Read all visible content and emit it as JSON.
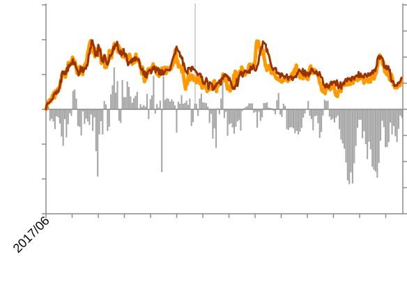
{
  "chart_data": {
    "type": "line",
    "title": "",
    "xlabel": "",
    "ylabel": "",
    "x_tick_labels": [
      "2017/06"
    ],
    "x_tick_count": 14,
    "y_left_tick_count": 7,
    "y_right_tick_count": 9,
    "y_left_range": [
      -3,
      3
    ],
    "y_right_range": [
      -4,
      4
    ],
    "grid": false,
    "legend": "none",
    "series": [
      {
        "type": "bar",
        "axis": "left",
        "color": "#a6a6a6",
        "values": [
          0.03,
          0.08,
          -0.33,
          -0.27,
          -0.35,
          -0.57,
          -0.2,
          -0.23,
          -0.41,
          -0.78,
          -1.05,
          -0.28,
          -0.81,
          -0.43,
          -0.11,
          -0.19,
          0.53,
          0.57,
          0.31,
          -0.48,
          -0.5,
          -0.75,
          -0.06,
          -0.42,
          -0.27,
          -0.35,
          -0.45,
          -0.15,
          -0.62,
          -0.23,
          -1.2,
          -1.93,
          -0.72,
          -0.34,
          -0.72,
          0.24,
          0.14,
          -0.62,
          -0.5,
          0.43,
          0.69,
          1.2,
          0.48,
          0.81,
          -0.33,
          -0.39,
          0.84,
          0.35,
          0.35,
          0.8,
          0.64,
          0.37,
          0.19,
          0.32,
          0.39,
          0.5,
          0.03,
          0.15,
          0.07,
          0.12,
          0.08,
          0.44,
          -0.28,
          0.29,
          0.4,
          0.96,
          -0.12,
          0.15,
          0.05,
          0.25,
          -1.8,
          0.95,
          0.27,
          0.32,
          0.3,
          0.22,
          0.29,
          0.23,
          0.11,
          -0.67,
          0.22,
          0.16,
          0.41,
          0.16,
          0.18,
          0.25,
          0.13,
          0.31,
          -0.48,
          -0.37,
          0.16,
          0.16,
          -0.19,
          0.31,
          0.45,
          0.2,
          0.19,
          0.18,
          0.08,
          -0.39,
          -0.13,
          -0.84,
          -0.55,
          -1.11,
          0.03,
          -0.14,
          0.31,
          0.8,
          -0.25,
          -0.07,
          -0.76,
          -0.43,
          -0.4,
          -0.52,
          -0.7,
          -0.5,
          -0.35,
          -0.31,
          -0.61,
          -0.05,
          0.03,
          0.07,
          0.09,
          0.17,
          0.17,
          0.17,
          -0.1,
          -0.07,
          -0.53,
          -0.07,
          -0.33,
          -0.23,
          0.18,
          0.18,
          0.2,
          0.05,
          0.04,
          0.03,
          -0.04,
          -0.14,
          0.26,
          0.47,
          -0.15,
          -0.22,
          0.16,
          0.1,
          -0.57,
          -0.59,
          -0.52,
          -0.51,
          -0.55,
          -0.69,
          -0.62,
          -0.72,
          -0.64,
          -0.53,
          -0.24,
          -0.12,
          -0.01,
          0.24,
          -0.19,
          -0.28,
          -0.6,
          -0.2,
          -0.18,
          -0.4,
          -0.82,
          -0.65,
          -0.18,
          0.27,
          0.24,
          0.25,
          -0.21,
          -0.3,
          -0.27,
          -0.38,
          -0.24,
          -0.18,
          -0.57,
          -0.87,
          -0.98,
          -1.13,
          -1.53,
          -2.04,
          -2.15,
          -1.81,
          -2.13,
          -1.55,
          -1.05,
          -0.53,
          -0.3,
          -0.3,
          -0.83,
          -0.63,
          -1.0,
          -1.43,
          -0.93,
          -1.15,
          -1.65,
          -1.74,
          -1.79,
          -1.96,
          -1.54,
          -0.9,
          -0.33,
          -0.51,
          -1.09,
          -1.08,
          -0.94,
          -0.38,
          -0.72,
          -0.48,
          -0.77,
          -0.94,
          -0.56,
          -0.18,
          -0.24
        ]
      },
      {
        "type": "line",
        "axis": "right",
        "color": "#ff9900",
        "values": [
          0.0,
          0.1,
          0.21,
          0.3,
          0.25,
          0.37,
          0.38,
          0.3,
          0.45,
          0.54,
          0.48,
          0.65,
          0.44,
          0.7,
          0.72,
          0.61,
          0.78,
          0.71,
          0.83,
          0.8,
          1.03,
          1.12,
          1.32,
          1.38,
          1.3,
          1.37,
          1.31,
          1.23,
          1.39,
          1.55,
          1.49,
          1.79,
          1.78,
          1.75,
          1.8,
          1.72,
          1.88,
          2.0,
          1.92,
          1.74,
          1.85,
          1.72,
          1.62,
          1.39,
          1.45,
          1.32,
          1.37,
          1.64,
          1.53,
          1.43,
          1.38,
          1.33,
          1.61,
          1.64,
          1.71,
          1.76,
          1.8,
          1.95,
          2.16,
          2.27,
          2.42,
          2.55,
          2.63,
          2.47,
          2.44,
          2.18,
          2.3,
          2.25,
          2.01,
          2.32,
          2.07,
          2.18,
          2.29,
          2.27,
          2.05,
          2.3,
          2.05,
          1.76,
          1.79,
          1.84,
          1.98,
          1.95,
          1.6,
          1.95,
          1.61,
          1.72,
          1.81,
          1.87,
          2.25,
          2.05,
          2.07,
          1.97,
          2.25,
          2.21,
          2.39,
          2.52,
          2.39,
          2.37,
          2.48,
          2.49,
          2.19,
          2.44,
          2.21,
          2.33,
          2.16,
          2.25,
          2.01,
          2.28,
          2.07,
          1.99,
          2.08,
          2.05,
          1.95,
          1.85,
          2.0,
          2.06,
          2.11,
          2.02,
          1.86,
          1.79,
          1.73,
          1.91,
          1.86,
          1.79,
          1.98,
          2.11,
          1.85,
          1.97,
          1.89,
          1.85,
          1.79,
          1.63,
          1.6,
          1.36,
          1.62,
          1.39,
          1.25,
          1.06,
          1.29,
          1.17,
          1.44,
          1.37,
          1.55,
          1.47,
          1.4,
          1.53,
          1.59,
          1.57,
          1.64,
          1.74,
          1.57,
          1.58,
          1.6,
          1.61,
          1.35,
          1.47,
          1.42,
          1.26,
          1.4,
          1.46,
          1.35,
          1.58,
          1.42,
          1.45,
          1.5,
          1.61,
          1.49,
          1.37,
          1.6,
          1.55,
          1.56,
          1.49,
          1.5,
          1.64,
          1.55,
          1.65,
          1.68,
          1.79,
          1.84,
          2.19,
          2.29,
          2.06,
          1.78,
          1.85,
          1.62,
          1.7,
          1.66,
          1.65,
          1.55,
          1.42,
          1.64,
          1.3,
          1.1,
          0.94,
          0.77,
          1.09,
          0.95,
          1.05,
          1.37,
          1.19,
          1.12,
          1.27,
          1.31,
          1.3,
          1.27,
          1.12,
          1.2,
          1.09,
          1.15,
          1.02,
          1.07,
          1.29,
          1.31,
          1.31,
          0.98,
          1.09,
          0.94,
          0.81,
          1.07,
          0.97,
          0.92,
          0.9,
          0.82,
          0.85,
          0.68,
          0.74,
          0.74,
          0.89,
          0.78,
          0.77,
          0.8,
          0.85,
          0.79,
          1.05,
          1.1,
          0.95,
          0.78,
          0.68,
          0.98,
          0.88,
          1.03,
          1.03,
          1.02,
          1.09,
          1.15,
          1.14,
          1.35,
          1.22,
          1.09,
          1.21,
          1.2,
          1.02,
          0.78,
          0.88,
          0.88,
          0.75,
          0.7,
          0.9,
          1.04,
          0.96,
          0.85,
          1.31,
          1.21,
          1.46,
          1.14,
          1.38,
          1.35,
          1.28,
          1.32,
          1.45,
          1.33,
          1.37,
          1.62,
          1.56,
          1.37,
          1.3,
          1.42,
          1.32,
          1.46,
          1.48,
          1.47,
          1.5,
          1.68,
          1.73,
          1.7,
          1.54,
          1.64,
          1.72,
          1.66,
          1.63,
          1.72,
          1.97,
          2.4,
          2.61,
          2.47,
          2.61,
          2.45,
          2.33,
          2.21,
          2.12,
          2.16,
          2.17,
          2.26,
          1.98,
          1.87,
          1.65,
          1.68,
          1.49,
          1.65,
          1.67,
          1.55,
          1.53,
          1.7,
          1.39,
          1.37,
          1.51,
          1.45,
          1.4,
          1.31,
          1.24,
          1.18,
          1.22,
          1.15,
          1.13,
          1.19,
          1.1,
          1.11,
          1.06,
          1.04,
          1.1,
          1.16,
          1.11,
          1.19,
          1.15,
          1.2,
          1.23,
          1.07,
          1.15,
          1.12,
          1.2,
          1.24,
          1.3,
          1.38,
          1.28,
          1.37,
          1.51,
          1.55,
          1.55,
          1.69,
          1.4,
          1.41,
          1.38,
          1.35,
          1.2,
          1.24,
          1.3,
          1.33,
          1.17,
          1.34,
          1.25,
          1.29,
          1.22,
          1.19,
          1.24,
          1.14,
          1.27,
          1.49,
          1.61,
          1.66,
          1.45,
          1.41,
          1.38,
          1.41,
          1.53,
          1.39,
          1.47,
          1.38,
          1.35,
          1.3,
          1.22,
          1.06,
          0.96,
          1.0,
          0.74,
          0.72,
          0.67,
          0.79,
          0.82,
          0.6,
          0.76,
          0.83,
          0.92,
          0.91,
          0.79,
          0.8,
          0.75,
          0.78,
          0.96,
          0.89,
          0.88,
          0.95,
          0.79,
          0.62,
          0.53,
          0.55,
          0.49,
          0.68,
          0.68,
          0.8,
          0.83,
          0.68,
          0.88,
          0.91,
          0.94,
          0.93,
          0.92,
          1.07,
          1.08,
          1.01,
          0.93,
          0.95,
          1.09,
          1.01,
          0.95,
          1.12,
          1.02,
          1.03,
          1.0,
          1.19,
          1.13,
          1.15,
          1.15,
          1.25,
          1.1,
          1.13,
          1.16,
          1.21,
          1.32,
          1.18,
          1.26,
          1.2,
          1.16,
          1.0,
          1.16,
          1.1,
          1.14,
          1.21,
          1.06,
          1.04,
          1.15,
          1.05,
          1.05,
          1.23,
          1.23,
          1.25,
          1.32,
          1.16,
          1.25,
          1.35,
          1.39,
          1.58,
          1.67,
          1.91,
          1.93,
          2.08,
          2.01,
          1.96,
          1.92,
          1.7,
          1.82,
          1.58,
          1.43,
          1.5,
          1.36,
          1.32,
          1.37,
          1.42,
          1.22,
          1.12,
          1.21,
          1.34,
          1.25,
          1.06,
          0.92,
          0.92,
          0.82,
          0.88,
          0.82,
          0.83,
          0.87,
          0.99,
          0.93,
          0.91,
          1.02,
          1.14
        ]
      },
      {
        "type": "line",
        "axis": "right",
        "color": "#993300",
        "values": [
          0.0,
          0.17,
          0.24,
          0.23,
          0.23,
          0.27,
          0.3,
          0.36,
          0.37,
          0.38,
          0.47,
          0.59,
          0.59,
          0.66,
          0.59,
          0.68,
          0.72,
          0.66,
          0.79,
          0.86,
          1.12,
          1.04,
          1.4,
          1.46,
          1.41,
          1.34,
          1.45,
          1.34,
          1.4,
          1.59,
          1.47,
          1.7,
          1.62,
          1.67,
          1.76,
          1.72,
          1.76,
          1.92,
          1.73,
          1.73,
          1.79,
          1.63,
          1.57,
          1.51,
          1.44,
          1.31,
          1.37,
          1.48,
          1.63,
          1.46,
          1.6,
          1.42,
          1.47,
          1.59,
          1.59,
          1.55,
          1.69,
          1.67,
          1.83,
          2.11,
          2.12,
          2.34,
          2.35,
          2.64,
          2.64,
          2.48,
          2.44,
          2.24,
          2.05,
          2.08,
          2.22,
          2.05,
          2.47,
          2.41,
          2.24,
          2.28,
          2.02,
          1.85,
          1.95,
          1.8,
          2.07,
          2.08,
          1.93,
          1.82,
          1.73,
          1.71,
          1.79,
          1.92,
          2.07,
          2.04,
          2.08,
          2.12,
          2.26,
          2.39,
          2.3,
          2.48,
          2.44,
          2.44,
          2.59,
          2.43,
          2.24,
          2.2,
          2.12,
          2.25,
          2.06,
          2.17,
          2.12,
          2.31,
          2.12,
          2.03,
          2.13,
          2.06,
          1.88,
          1.69,
          1.72,
          1.81,
          1.81,
          1.88,
          1.79,
          1.94,
          1.84,
          1.92,
          1.99,
          1.87,
          1.99,
          1.92,
          1.91,
          1.87,
          1.92,
          1.77,
          1.61,
          1.54,
          1.5,
          1.56,
          1.37,
          1.32,
          1.45,
          1.24,
          1.39,
          1.22,
          1.41,
          1.47,
          1.49,
          1.52,
          1.51,
          1.38,
          1.45,
          1.6,
          1.53,
          1.65,
          1.56,
          1.41,
          1.59,
          1.55,
          1.49,
          1.58,
          1.33,
          1.51,
          1.5,
          1.32,
          1.5,
          1.47,
          1.33,
          1.41,
          1.44,
          1.52,
          1.52,
          1.51,
          1.52,
          1.5,
          1.51,
          1.51,
          1.62,
          1.75,
          1.86,
          1.95,
          2.03,
          2.09,
          2.12,
          2.29,
          2.4,
          2.3,
          2.25,
          2.21,
          2.19,
          2.02,
          2.05,
          1.94,
          1.98,
          1.69,
          1.77,
          1.63,
          1.5,
          1.44,
          1.41,
          1.37,
          1.59,
          1.57,
          1.59,
          1.56,
          1.46,
          1.63,
          1.63,
          1.53,
          1.54,
          1.51,
          1.48,
          1.44,
          1.4,
          1.31,
          1.33,
          1.36,
          1.37,
          1.36,
          1.23,
          1.25,
          1.03,
          0.98,
          1.02,
          0.96,
          1.07,
          1.2,
          1.12,
          1.02,
          0.78,
          0.92,
          1.04,
          1.0,
          0.99,
          0.96,
          0.74,
          0.85,
          0.78,
          0.91,
          0.87,
          0.98,
          0.98,
          1.02,
          1.01,
          1.11,
          1.06,
          0.94,
          1.18,
          1.2,
          1.17,
          1.31,
          1.27,
          1.35,
          1.28,
          1.31,
          1.24,
          1.26,
          1.11,
          1.2,
          1.1,
          1.03,
          0.93,
          0.83,
          0.78,
          0.84,
          0.78,
          0.9,
          0.93,
          1.16,
          0.89,
          1.06,
          1.28,
          1.3,
          1.41,
          1.44,
          1.36,
          1.25,
          1.41,
          1.38,
          1.48,
          1.46,
          1.47,
          1.41,
          1.45,
          1.4,
          1.5,
          1.4,
          1.64,
          1.59,
          1.53,
          1.62,
          1.7,
          1.56,
          1.49,
          1.48,
          1.53,
          1.66,
          1.7,
          1.81,
          2.04,
          2.15,
          2.25,
          2.39,
          2.34,
          2.6,
          2.56,
          2.54,
          2.5,
          2.49,
          2.21,
          2.3,
          2.14,
          2.1,
          2.0,
          1.86,
          1.74,
          1.63,
          1.57,
          1.5,
          1.56,
          1.55,
          1.59,
          1.58,
          1.4,
          1.37,
          1.4,
          1.35,
          1.38,
          1.22,
          1.26,
          1.38,
          1.33,
          1.27,
          1.26,
          1.19,
          1.27,
          1.26,
          1.34,
          1.18,
          1.13,
          1.24,
          1.24,
          1.24,
          1.27,
          1.15,
          1.12,
          1.23,
          1.21,
          1.24,
          1.28,
          1.23,
          1.38,
          1.36,
          1.46,
          1.53,
          1.48,
          1.45,
          1.43,
          1.37,
          1.55,
          1.3,
          1.42,
          1.49,
          1.26,
          1.42,
          1.39,
          1.36,
          1.27,
          1.41,
          1.34,
          1.45,
          1.56,
          1.54,
          1.48,
          1.43,
          1.39,
          1.38,
          1.44,
          1.46,
          1.33,
          1.29,
          1.36,
          1.43,
          1.33,
          1.23,
          1.23,
          1.2,
          1.03,
          0.92,
          0.93,
          0.83,
          0.95,
          0.98,
          0.85,
          0.91,
          0.82,
          0.92,
          0.99,
          1.06,
          0.94,
          1.01,
          1.06,
          1.03,
          1.07,
          1.0,
          0.92,
          1.11,
          1.0,
          0.81,
          0.88,
          0.86,
          1.04,
          0.79,
          0.96,
          0.94,
          1.03,
          0.96,
          1.08,
          1.16,
          1.14,
          1.07,
          1.2,
          1.14,
          1.16,
          1.19,
          1.1,
          1.09,
          1.25,
          1.22,
          1.23,
          1.14,
          1.26,
          1.27,
          1.3,
          1.26,
          1.25,
          1.43,
          1.23,
          1.24,
          1.37,
          1.24,
          1.26,
          1.27,
          1.21,
          1.34,
          1.36,
          1.31,
          1.26,
          1.25,
          1.38,
          1.29,
          1.3,
          1.39,
          1.33,
          1.39,
          1.48,
          1.38,
          1.5,
          1.52,
          1.46,
          1.6,
          1.67,
          1.94,
          2.01,
          2.05,
          1.93,
          2.03,
          2.03,
          1.97,
          1.95,
          1.83,
          1.62,
          1.63,
          1.57,
          1.67,
          1.53,
          1.61,
          1.65,
          1.49,
          1.52,
          1.3,
          1.06,
          1.07,
          1.09,
          1.06,
          0.91,
          0.89,
          0.92,
          0.93,
          0.9,
          1.01,
          1.03,
          1.0,
          1.06,
          1.1,
          1.21
        ]
      }
    ]
  }
}
